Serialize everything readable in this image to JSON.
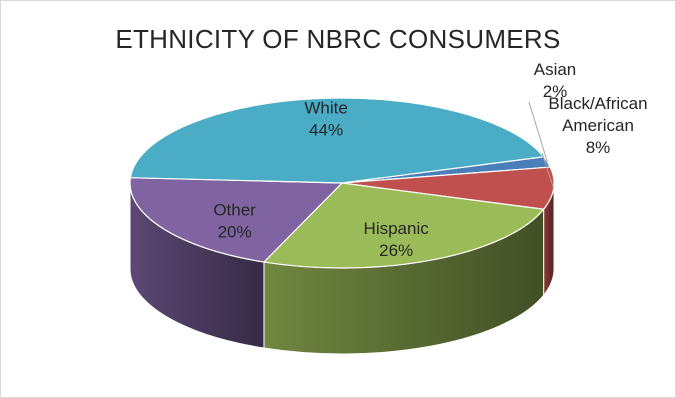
{
  "chart_data": {
    "type": "pie",
    "title": "ETHNICITY OF NBRC CONSUMERS",
    "slices": [
      {
        "label": "Asian",
        "value": 2,
        "value_label": "2%",
        "color": "#4A7EBB"
      },
      {
        "label": "Black/African American",
        "value": 8,
        "value_label": "8%",
        "color": "#C0504D"
      },
      {
        "label": "Hispanic",
        "value": 26,
        "value_label": "26%",
        "color": "#9BBB59"
      },
      {
        "label": "Other",
        "value": 20,
        "value_label": "20%",
        "color": "#8064A2"
      },
      {
        "label": "White",
        "value": 44,
        "value_label": "44%",
        "color": "#4BACC6"
      }
    ],
    "legend": "none",
    "data_labels": "category and percentage"
  }
}
